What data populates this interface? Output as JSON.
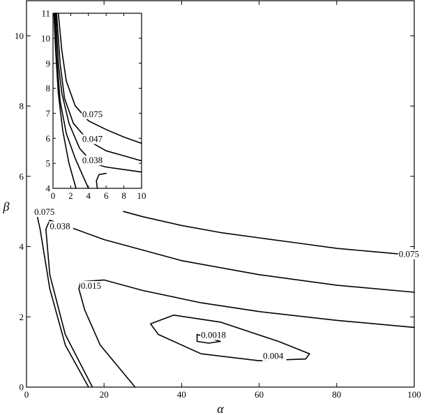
{
  "chart_data": [
    {
      "type": "line",
      "subtype": "contour",
      "xlabel": "α",
      "ylabel": "β",
      "xlim": [
        0,
        100
      ],
      "ylim": [
        0,
        11
      ],
      "xticks": [
        0,
        20,
        40,
        60,
        80,
        100
      ],
      "yticks": [
        0,
        2,
        4,
        6,
        8,
        10
      ],
      "grid": false,
      "series": [
        {
          "name": "0.0018",
          "label_at": [
            45,
            1.4
          ],
          "x": [
            44,
            47,
            50,
            47,
            44,
            44
          ],
          "y": [
            1.5,
            1.4,
            1.3,
            1.25,
            1.3,
            1.5
          ]
        },
        {
          "name": "0.004",
          "label_at": [
            61,
            0.8
          ],
          "x": [
            38,
            50,
            65,
            73,
            72,
            60,
            45,
            34,
            32,
            38
          ],
          "y": [
            2.05,
            1.85,
            1.3,
            0.95,
            0.8,
            0.75,
            0.95,
            1.5,
            1.8,
            2.05
          ]
        },
        {
          "name": "0.015",
          "label_at": [
            14,
            2.8
          ],
          "x": [
            28,
            19,
            15,
            13.5,
            14,
            20,
            30,
            45,
            60,
            80,
            100
          ],
          "y": [
            0,
            1.2,
            2.2,
            2.8,
            3.0,
            3.05,
            2.75,
            2.4,
            2.15,
            1.9,
            1.7
          ]
        },
        {
          "name": "0.038",
          "label_at": [
            6,
            4.5
          ],
          "x": [
            17,
            10,
            6,
            5,
            6,
            10,
            20,
            40,
            60,
            80,
            100
          ],
          "y": [
            0,
            1.5,
            3.2,
            4.5,
            4.75,
            4.6,
            4.2,
            3.6,
            3.2,
            2.9,
            2.7
          ]
        },
        {
          "name": "0.075",
          "label_at": [
            2,
            4.9
          ],
          "x": [
            16,
            10,
            6,
            3.5,
            2.5
          ],
          "y": [
            0,
            1.2,
            2.8,
            4.5,
            5.0
          ]
        },
        {
          "name": "0.075",
          "label_at": [
            96,
            3.7
          ],
          "x": [
            25,
            30,
            40,
            50,
            60,
            70,
            80,
            90,
            100
          ],
          "y": [
            5.0,
            4.85,
            4.6,
            4.4,
            4.25,
            4.1,
            3.95,
            3.85,
            3.75
          ]
        }
      ]
    },
    {
      "type": "line",
      "subtype": "contour",
      "inset": true,
      "xlim": [
        0,
        10
      ],
      "ylim": [
        4,
        11
      ],
      "xticks": [
        0,
        2,
        4,
        6,
        8,
        10
      ],
      "yticks": [
        4,
        5,
        6,
        7,
        8,
        9,
        10,
        11
      ],
      "grid": false,
      "series": [
        {
          "name": "0.075",
          "label_at": [
            3.3,
            6.85
          ],
          "x": [
            0.6,
            1.0,
            1.5,
            2.5,
            4.0,
            6.0,
            8.0,
            10.0
          ],
          "y": [
            11.0,
            9.5,
            8.3,
            7.3,
            6.7,
            6.35,
            6.05,
            5.8
          ]
        },
        {
          "name": "0.047",
          "label_at": [
            3.3,
            5.85
          ],
          "x": [
            0.4,
            0.8,
            1.3,
            2.3,
            4.0,
            6.0,
            8.0,
            10.0
          ],
          "y": [
            11.0,
            9.0,
            7.6,
            6.6,
            5.9,
            5.5,
            5.3,
            5.1
          ]
        },
        {
          "name": "0.038",
          "label_at": [
            3.3,
            5.0
          ],
          "x": [
            0.3,
            0.6,
            1.0,
            1.8,
            3.0,
            4.5,
            6.0,
            8.0,
            10.0
          ],
          "y": [
            11.0,
            9.0,
            7.8,
            6.6,
            5.6,
            5.0,
            4.85,
            4.75,
            4.65
          ]
        },
        {
          "name": "",
          "label_at": null,
          "x": [
            0.2,
            0.4,
            0.8,
            1.5,
            2.5,
            3.5,
            4.0
          ],
          "y": [
            11.0,
            9.3,
            7.5,
            6.2,
            5.2,
            4.4,
            4.0
          ]
        },
        {
          "name": "",
          "label_at": null,
          "x": [
            0.1,
            0.3,
            0.6,
            1.1,
            1.8,
            2.6
          ],
          "y": [
            11.0,
            9.5,
            7.8,
            6.3,
            5.0,
            4.0
          ]
        },
        {
          "name": "",
          "label_at": null,
          "x": [
            5.0,
            4.9,
            5.2,
            6.0
          ],
          "y": [
            4.0,
            4.3,
            4.55,
            4.6
          ]
        }
      ]
    }
  ]
}
